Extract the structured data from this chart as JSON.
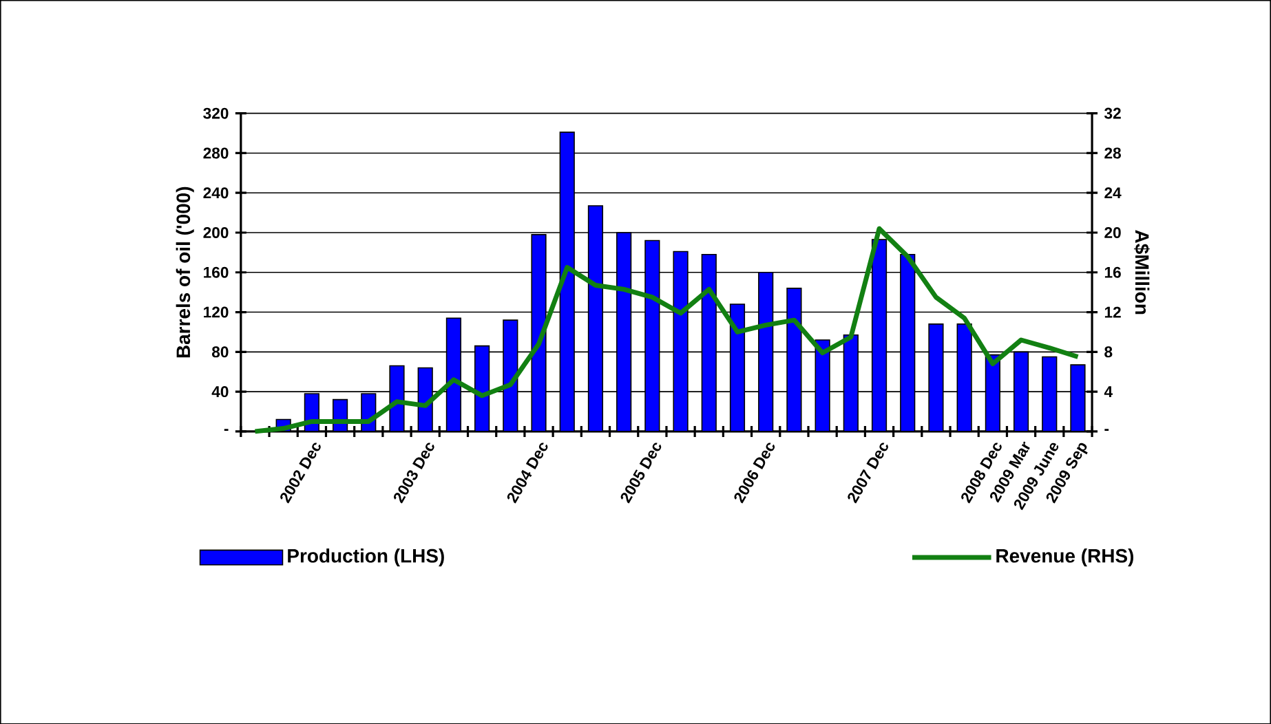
{
  "chart_data": {
    "type": "bar",
    "categories": [
      null,
      null,
      "2002 Dec",
      null,
      null,
      null,
      "2003 Dec",
      null,
      null,
      null,
      "2004 Dec",
      null,
      null,
      null,
      "2005 Dec",
      null,
      null,
      null,
      "2006 Dec",
      null,
      null,
      null,
      "2007 Dec",
      null,
      null,
      null,
      "2008 Dec",
      "2009 Mar",
      "2009 June",
      "2009 Sep"
    ],
    "ylabel": "Barrels of oil ('000)",
    "y2label": "A$Million",
    "ylim": [
      0,
      320
    ],
    "yticks": [
      {
        "value": 0,
        "label": "-"
      },
      40,
      80,
      120,
      160,
      200,
      240,
      280,
      320
    ],
    "y2lim": [
      0,
      32
    ],
    "y2ticks": [
      {
        "value": 0,
        "label": "-"
      },
      4,
      8,
      12,
      16,
      20,
      24,
      28,
      32
    ],
    "grid": "y",
    "legend": "bottom",
    "series": [
      {
        "name": "Production (LHS)",
        "color": "#0000ff",
        "values": [
          null,
          12,
          38,
          32,
          38,
          66,
          64,
          114,
          86,
          112,
          198,
          301,
          227,
          200,
          192,
          181,
          178,
          128,
          160,
          144,
          92,
          97,
          193,
          178,
          108,
          108,
          77,
          80,
          75,
          67
        ]
      },
      {
        "name": "Revenue (RHS)",
        "type": "line",
        "axis": "y2",
        "color": "#128012",
        "values": [
          0,
          0.3,
          1.0,
          1.0,
          1.0,
          3.0,
          2.6,
          5.2,
          3.6,
          4.7,
          8.8,
          16.5,
          14.7,
          14.3,
          13.5,
          11.9,
          14.3,
          10.0,
          10.7,
          11.2,
          7.9,
          9.5,
          20.4,
          17.6,
          13.5,
          11.4,
          6.8,
          9.2,
          8.4,
          7.5
        ]
      }
    ]
  }
}
